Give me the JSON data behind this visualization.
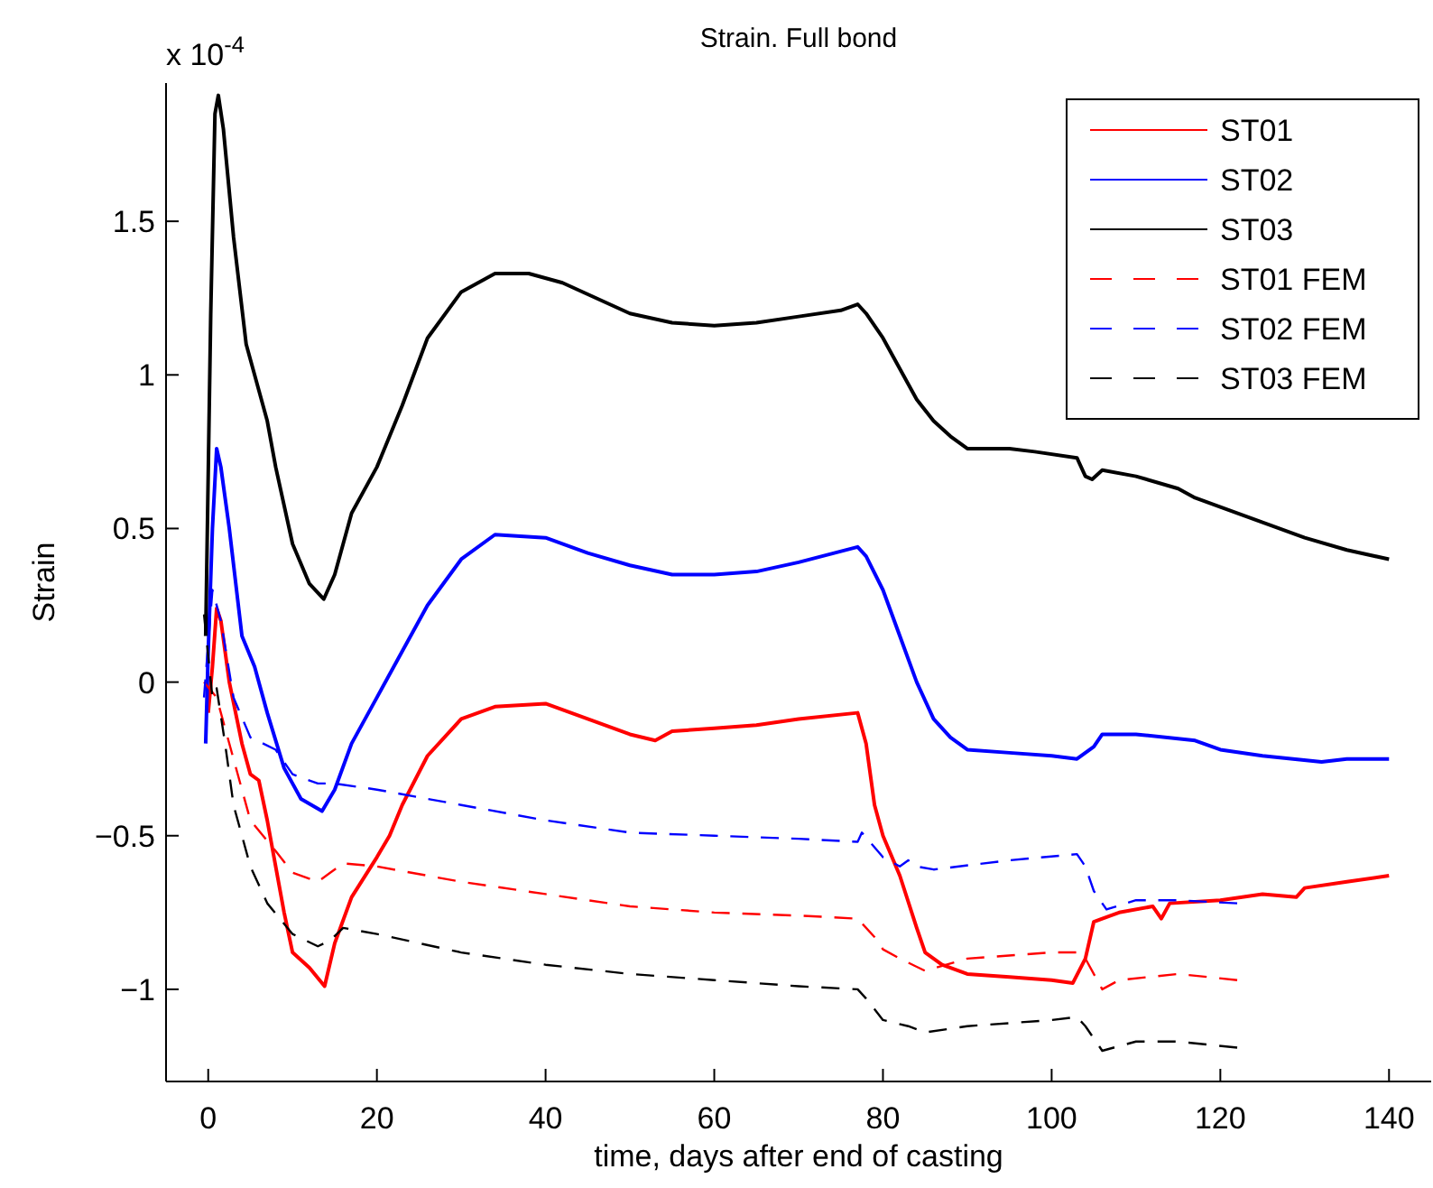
{
  "chart_data": {
    "type": "line",
    "title": "Strain. Full bond",
    "xlabel": "time, days after end of casting",
    "ylabel": "Strain",
    "annotations": [
      "x 10$^{-4}$"
    ],
    "xlim": [
      -5,
      145
    ],
    "ylim": [
      -1.3,
      1.95
    ],
    "xticks": [
      0,
      20,
      40,
      60,
      80,
      100,
      120,
      140
    ],
    "yticks": [
      {
        "value": -1,
        "label": "−1"
      },
      {
        "value": -0.5,
        "label": "−0.5"
      },
      0,
      0.5,
      1,
      1.5
    ],
    "legend": "top right",
    "marker": "none",
    "series": [
      {
        "name": "ST01",
        "color": "#ff0000",
        "line_style": "solid",
        "x": [
          0,
          0.5,
          1,
          1.5,
          2.5,
          4,
          5,
          6,
          7,
          8,
          9,
          10,
          12,
          13.8,
          15,
          17,
          20,
          21.5,
          23,
          26,
          30,
          34,
          40,
          45,
          50,
          53,
          55,
          60,
          65,
          70,
          77,
          78,
          79,
          80,
          82,
          84,
          85,
          87,
          90,
          95,
          100,
          102.5,
          104,
          105,
          108,
          112,
          113,
          114,
          120,
          125,
          129,
          130,
          135,
          140
        ],
        "values": [
          -0.1,
          0.05,
          0.24,
          0.2,
          0.0,
          -0.2,
          -0.3,
          -0.32,
          -0.45,
          -0.6,
          -0.75,
          -0.88,
          -0.93,
          -0.99,
          -0.85,
          -0.7,
          -0.57,
          -0.5,
          -0.4,
          -0.24,
          -0.12,
          -0.08,
          -0.07,
          -0.12,
          -0.17,
          -0.19,
          -0.16,
          -0.15,
          -0.14,
          -0.12,
          -0.1,
          -0.2,
          -0.4,
          -0.5,
          -0.63,
          -0.8,
          -0.88,
          -0.92,
          -0.95,
          -0.96,
          -0.97,
          -0.98,
          -0.9,
          -0.78,
          -0.75,
          -0.73,
          -0.77,
          -0.72,
          -0.71,
          -0.69,
          -0.7,
          -0.67,
          -0.65,
          -0.63
        ]
      },
      {
        "name": "ST02",
        "color": "#0000ff",
        "line_style": "solid",
        "x": [
          -0.3,
          0,
          0.5,
          1,
          1.5,
          2.5,
          4,
          5.5,
          7,
          9,
          11,
          13.5,
          15,
          17,
          20,
          23,
          26,
          30,
          34,
          40,
          45,
          50,
          55,
          60,
          65,
          70,
          77,
          78,
          80,
          82,
          84,
          86,
          88,
          90,
          95,
          100,
          103,
          105,
          106,
          110,
          117,
          120,
          125,
          132,
          135,
          140
        ],
        "values": [
          -0.2,
          0.1,
          0.5,
          0.76,
          0.7,
          0.5,
          0.15,
          0.05,
          -0.1,
          -0.28,
          -0.38,
          -0.42,
          -0.35,
          -0.2,
          -0.05,
          0.1,
          0.25,
          0.4,
          0.48,
          0.47,
          0.42,
          0.38,
          0.35,
          0.35,
          0.36,
          0.39,
          0.44,
          0.41,
          0.3,
          0.15,
          0.0,
          -0.12,
          -0.18,
          -0.22,
          -0.23,
          -0.24,
          -0.25,
          -0.21,
          -0.17,
          -0.17,
          -0.19,
          -0.22,
          -0.24,
          -0.26,
          -0.25,
          -0.25
        ]
      },
      {
        "name": "ST03",
        "color": "#000000",
        "line_style": "solid",
        "x": [
          -0.3,
          0.3,
          0.8,
          1.2,
          1.8,
          3,
          4.5,
          6,
          7,
          8,
          10,
          12,
          13.7,
          15,
          17,
          20,
          23,
          26,
          30,
          34,
          38,
          42,
          46,
          50,
          55,
          60,
          65,
          70,
          75,
          77,
          78,
          80,
          82,
          84,
          86,
          88,
          90,
          95,
          98,
          103,
          104,
          104.8,
          106,
          110,
          115,
          117,
          120,
          125,
          130,
          135,
          140
        ],
        "values": [
          0.15,
          1.2,
          1.85,
          1.91,
          1.8,
          1.45,
          1.1,
          0.95,
          0.85,
          0.7,
          0.45,
          0.32,
          0.27,
          0.35,
          0.55,
          0.7,
          0.9,
          1.12,
          1.27,
          1.33,
          1.33,
          1.3,
          1.25,
          1.2,
          1.17,
          1.16,
          1.17,
          1.19,
          1.21,
          1.23,
          1.2,
          1.12,
          1.02,
          0.92,
          0.85,
          0.8,
          0.76,
          0.76,
          0.75,
          0.73,
          0.67,
          0.66,
          0.69,
          0.67,
          0.63,
          0.6,
          0.57,
          0.52,
          0.47,
          0.43,
          0.4
        ]
      },
      {
        "name": "ST01 FEM",
        "color": "#ff0000",
        "line_style": "dashed",
        "x": [
          -0.5,
          1,
          3,
          5,
          8,
          10,
          13,
          14.5,
          16,
          20,
          30,
          40,
          50,
          60,
          70,
          77,
          79,
          80,
          82,
          85,
          90,
          100,
          103,
          104,
          106,
          108,
          115,
          122
        ],
        "values": [
          0.0,
          -0.05,
          -0.25,
          -0.45,
          -0.55,
          -0.62,
          -0.65,
          -0.62,
          -0.59,
          -0.6,
          -0.65,
          -0.69,
          -0.73,
          -0.75,
          -0.76,
          -0.77,
          -0.83,
          -0.87,
          -0.9,
          -0.94,
          -0.9,
          -0.88,
          -0.88,
          -0.9,
          -1.0,
          -0.97,
          -0.95,
          -0.97
        ]
      },
      {
        "name": "ST02 FEM",
        "color": "#0000ff",
        "line_style": "dashed",
        "x": [
          -0.5,
          0.5,
          1.5,
          3,
          5,
          8,
          10,
          13,
          15,
          20,
          30,
          40,
          50,
          60,
          70,
          77,
          77.5,
          80,
          82,
          83,
          84,
          86,
          95,
          103,
          104,
          105,
          106.5,
          110,
          115,
          122
        ],
        "values": [
          -0.05,
          0.3,
          0.2,
          -0.05,
          -0.18,
          -0.22,
          -0.3,
          -0.33,
          -0.33,
          -0.35,
          -0.4,
          -0.45,
          -0.49,
          -0.5,
          -0.51,
          -0.52,
          -0.49,
          -0.57,
          -0.6,
          -0.58,
          -0.6,
          -0.61,
          -0.58,
          -0.56,
          -0.6,
          -0.68,
          -0.74,
          -0.71,
          -0.71,
          -0.72
        ]
      },
      {
        "name": "ST03 FEM",
        "color": "#000000",
        "line_style": "dashed",
        "x": [
          -0.5,
          0.5,
          1,
          2,
          3,
          5,
          7,
          10,
          13,
          14.5,
          16,
          20,
          30,
          40,
          50,
          60,
          70,
          77,
          78,
          80,
          83,
          85,
          90,
          100,
          103,
          104,
          106,
          110,
          115,
          122
        ],
        "values": [
          0.22,
          -0.05,
          -0.02,
          -0.2,
          -0.4,
          -0.6,
          -0.72,
          -0.82,
          -0.86,
          -0.84,
          -0.8,
          -0.82,
          -0.88,
          -0.92,
          -0.95,
          -0.97,
          -0.99,
          -1.0,
          -1.03,
          -1.1,
          -1.12,
          -1.14,
          -1.12,
          -1.1,
          -1.09,
          -1.12,
          -1.2,
          -1.17,
          -1.17,
          -1.19
        ]
      }
    ]
  }
}
